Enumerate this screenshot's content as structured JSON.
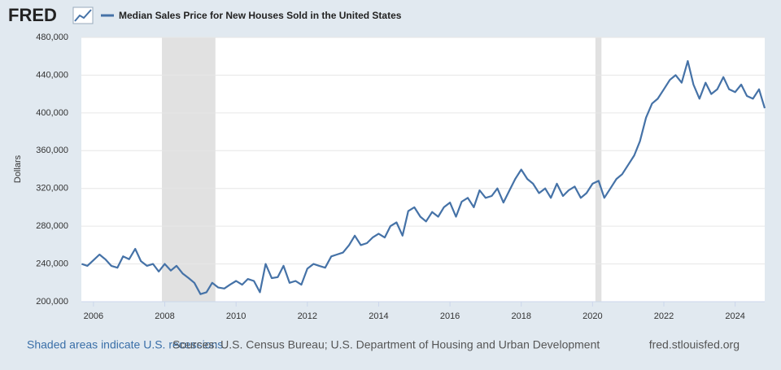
{
  "chart_data": {
    "type": "line",
    "logo": "FRED",
    "ylabel": "Dollars",
    "footer_left": "Shaded areas indicate U.S. recessions",
    "footer_source": "Sources: U.S. Census Bureau; U.S. Department of Housing and Urban Development",
    "footer_right": "fred.stlouisfed.org",
    "xlim": [
      2005.66,
      2024.83
    ],
    "xticks": [
      2006,
      2008,
      2010,
      2012,
      2014,
      2016,
      2018,
      2020,
      2022,
      2024
    ],
    "ylim": [
      200000,
      480000
    ],
    "yticks": [
      {
        "value": 200000,
        "label": "200,000"
      },
      {
        "value": 240000,
        "label": "240,000"
      },
      {
        "value": 280000,
        "label": "280,000"
      },
      {
        "value": 320000,
        "label": "320,000"
      },
      {
        "value": 360000,
        "label": "360,000"
      },
      {
        "value": 400000,
        "label": "400,000"
      },
      {
        "value": 440000,
        "label": "440,000"
      },
      {
        "value": 480000,
        "label": "480,000"
      }
    ],
    "grid": true,
    "recessions": [
      [
        2007.92,
        2009.42
      ],
      [
        2020.08,
        2020.25
      ]
    ],
    "recession_color": "#e1e1e1",
    "x": [
      2005.67,
      2005.83,
      2006.0,
      2006.17,
      2006.33,
      2006.5,
      2006.67,
      2006.83,
      2007.0,
      2007.17,
      2007.33,
      2007.5,
      2007.67,
      2007.83,
      2008.0,
      2008.17,
      2008.33,
      2008.5,
      2008.67,
      2008.83,
      2009.0,
      2009.17,
      2009.33,
      2009.5,
      2009.67,
      2009.83,
      2010.0,
      2010.17,
      2010.33,
      2010.5,
      2010.67,
      2010.83,
      2011.0,
      2011.17,
      2011.33,
      2011.5,
      2011.67,
      2011.83,
      2012.0,
      2012.17,
      2012.33,
      2012.5,
      2012.67,
      2012.83,
      2013.0,
      2013.17,
      2013.33,
      2013.5,
      2013.67,
      2013.83,
      2014.0,
      2014.17,
      2014.33,
      2014.5,
      2014.67,
      2014.83,
      2015.0,
      2015.17,
      2015.33,
      2015.5,
      2015.67,
      2015.83,
      2016.0,
      2016.17,
      2016.33,
      2016.5,
      2016.67,
      2016.83,
      2017.0,
      2017.17,
      2017.33,
      2017.5,
      2017.67,
      2017.83,
      2018.0,
      2018.17,
      2018.33,
      2018.5,
      2018.67,
      2018.83,
      2019.0,
      2019.17,
      2019.33,
      2019.5,
      2019.67,
      2019.83,
      2020.0,
      2020.17,
      2020.33,
      2020.5,
      2020.67,
      2020.83,
      2021.0,
      2021.17,
      2021.33,
      2021.5,
      2021.67,
      2021.83,
      2022.0,
      2022.17,
      2022.33,
      2022.5,
      2022.67,
      2022.83,
      2023.0,
      2023.17,
      2023.33,
      2023.5,
      2023.67,
      2023.83,
      2024.0,
      2024.17,
      2024.33,
      2024.5,
      2024.67,
      2024.83
    ],
    "series": [
      {
        "name": "Median Sales Price for New Houses Sold in the United States",
        "color": "#4572a7",
        "values": [
          240000,
          238000,
          244000,
          250000,
          245000,
          238000,
          236000,
          248000,
          245000,
          256000,
          243000,
          238000,
          240000,
          232000,
          240000,
          233000,
          238000,
          230000,
          225000,
          220000,
          208000,
          210000,
          220000,
          215000,
          214000,
          218000,
          222000,
          218000,
          224000,
          222000,
          210000,
          240000,
          225000,
          226000,
          238000,
          220000,
          222000,
          218000,
          235000,
          240000,
          238000,
          236000,
          248000,
          250000,
          252000,
          260000,
          270000,
          260000,
          262000,
          268000,
          272000,
          268000,
          280000,
          284000,
          270000,
          296000,
          300000,
          290000,
          285000,
          295000,
          290000,
          300000,
          305000,
          290000,
          306000,
          310000,
          300000,
          318000,
          310000,
          312000,
          320000,
          305000,
          318000,
          330000,
          340000,
          330000,
          325000,
          315000,
          320000,
          310000,
          325000,
          312000,
          318000,
          322000,
          310000,
          315000,
          325000,
          328000,
          310000,
          320000,
          330000,
          335000,
          345000,
          355000,
          370000,
          395000,
          410000,
          415000,
          425000,
          435000,
          440000,
          432000,
          455000,
          430000,
          415000,
          432000,
          420000,
          425000,
          438000,
          425000,
          422000,
          430000,
          418000,
          415000,
          425000,
          405000
        ]
      }
    ]
  }
}
